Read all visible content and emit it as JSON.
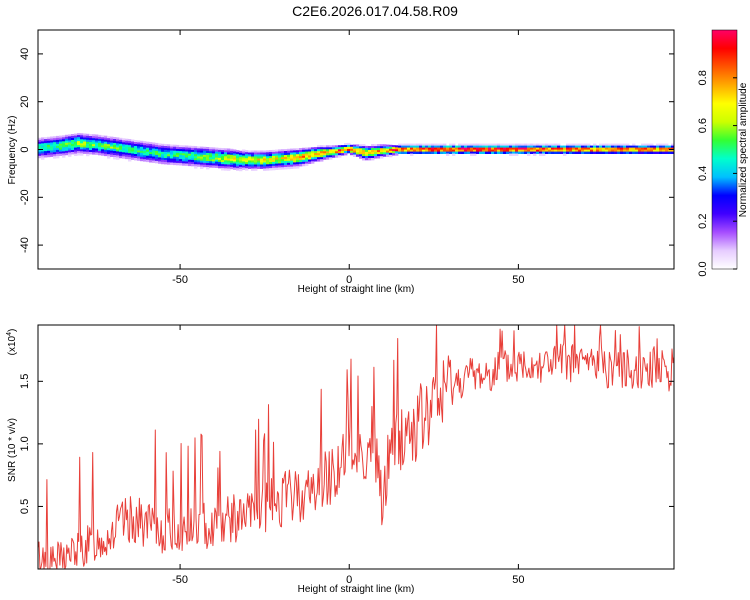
{
  "title": "C2E6.2026.017.04.58.R09",
  "chart_data": [
    {
      "type": "heatmap",
      "title": "C2E6.2026.017.04.58.R09",
      "xlabel": "Height of straight line (km)",
      "ylabel": "Frequency (Hz)",
      "xlim": [
        -92,
        96
      ],
      "ylim": [
        -50,
        50
      ],
      "xticks": [
        -50,
        0,
        50
      ],
      "yticks": [
        -40,
        -20,
        0,
        20,
        40
      ],
      "grid": false,
      "colorbar": {
        "label": "Normalized spectral amplitude",
        "range": [
          0,
          1
        ],
        "ticks": [
          0.0,
          0.2,
          0.4,
          0.6,
          0.8
        ],
        "colormap": [
          "#ffffff",
          "#e6ccff",
          "#a64dff",
          "#4000ff",
          "#0000ff",
          "#00c0ff",
          "#00ffcc",
          "#33ff33",
          "#ccff00",
          "#ffff00",
          "#ffaa00",
          "#ff5500",
          "#ff0000",
          "#ff0066"
        ]
      },
      "ridge": {
        "x": [
          -92,
          -85,
          -80,
          -75,
          -70,
          -65,
          -60,
          -55,
          -50,
          -45,
          -40,
          -35,
          -30,
          -25,
          -20,
          -15,
          -10,
          -5,
          0,
          5,
          10,
          15,
          20,
          30,
          40,
          50,
          60,
          70,
          80,
          90,
          96
        ],
        "frequency": [
          0.5,
          1.5,
          2.5,
          2.0,
          1.0,
          0.0,
          -1.0,
          -2.0,
          -2.5,
          -3.0,
          -3.5,
          -4.0,
          -4.5,
          -4.5,
          -4.0,
          -3.5,
          -2.0,
          -1.0,
          0.3,
          -1.5,
          -0.5,
          0.0,
          0.0,
          0.0,
          0.0,
          0.0,
          0.0,
          0.0,
          0.0,
          0.0,
          0.0
        ],
        "half_width": [
          3.5,
          3.5,
          3.5,
          3.5,
          3.5,
          3.5,
          3.5,
          3.5,
          3.5,
          3.5,
          3.5,
          3.5,
          3.0,
          3.0,
          3.0,
          3.0,
          2.5,
          2.0,
          1.5,
          2.5,
          2.0,
          1.5,
          1.5,
          1.5,
          1.5,
          1.5,
          1.5,
          1.5,
          1.5,
          1.5,
          1.5
        ],
        "amplitude": [
          0.5,
          0.55,
          0.6,
          0.55,
          0.55,
          0.5,
          0.5,
          0.5,
          0.5,
          0.55,
          0.6,
          0.65,
          0.7,
          0.7,
          0.7,
          0.75,
          0.8,
          0.8,
          0.95,
          0.7,
          0.8,
          0.9,
          0.95,
          0.98,
          1.0,
          1.0,
          0.95,
          0.9,
          0.9,
          0.85,
          0.85
        ]
      }
    },
    {
      "type": "line",
      "xlabel": "Height of straight line (km)",
      "ylabel": "SNR (10 * v/v)",
      "y_exponent_label": "(x10",
      "y_exponent": "4",
      "xlim": [
        -92,
        96
      ],
      "ylim": [
        0,
        1.95
      ],
      "xticks": [
        -50,
        0,
        50
      ],
      "yticks": [
        0.5,
        1.0,
        1.5
      ],
      "grid": false,
      "line_color": "#e8403a",
      "series": [
        {
          "x": [
            -92,
            -88,
            -84,
            -80,
            -76,
            -72,
            -68,
            -64,
            -60,
            -56,
            -52,
            -48,
            -44,
            -40,
            -36,
            -32,
            -28,
            -24,
            -20,
            -16,
            -12,
            -8,
            -4,
            0,
            4,
            8,
            10,
            12,
            16,
            20,
            24,
            28,
            32,
            36,
            40,
            44,
            48,
            52,
            56,
            60,
            64,
            68,
            72,
            76,
            80,
            84,
            88,
            92,
            96
          ],
          "values": [
            0.1,
            0.05,
            0.1,
            0.15,
            0.2,
            0.25,
            0.35,
            0.4,
            0.35,
            0.3,
            0.3,
            0.3,
            0.35,
            0.35,
            0.4,
            0.4,
            0.45,
            0.5,
            0.55,
            0.6,
            0.6,
            0.7,
            0.8,
            0.9,
            0.95,
            0.85,
            0.5,
            1.0,
            1.05,
            1.15,
            1.25,
            1.4,
            1.5,
            1.55,
            1.55,
            1.6,
            1.6,
            1.65,
            1.65,
            1.65,
            1.65,
            1.65,
            1.65,
            1.6,
            1.6,
            1.6,
            1.6,
            1.6,
            1.55
          ]
        }
      ]
    }
  ]
}
